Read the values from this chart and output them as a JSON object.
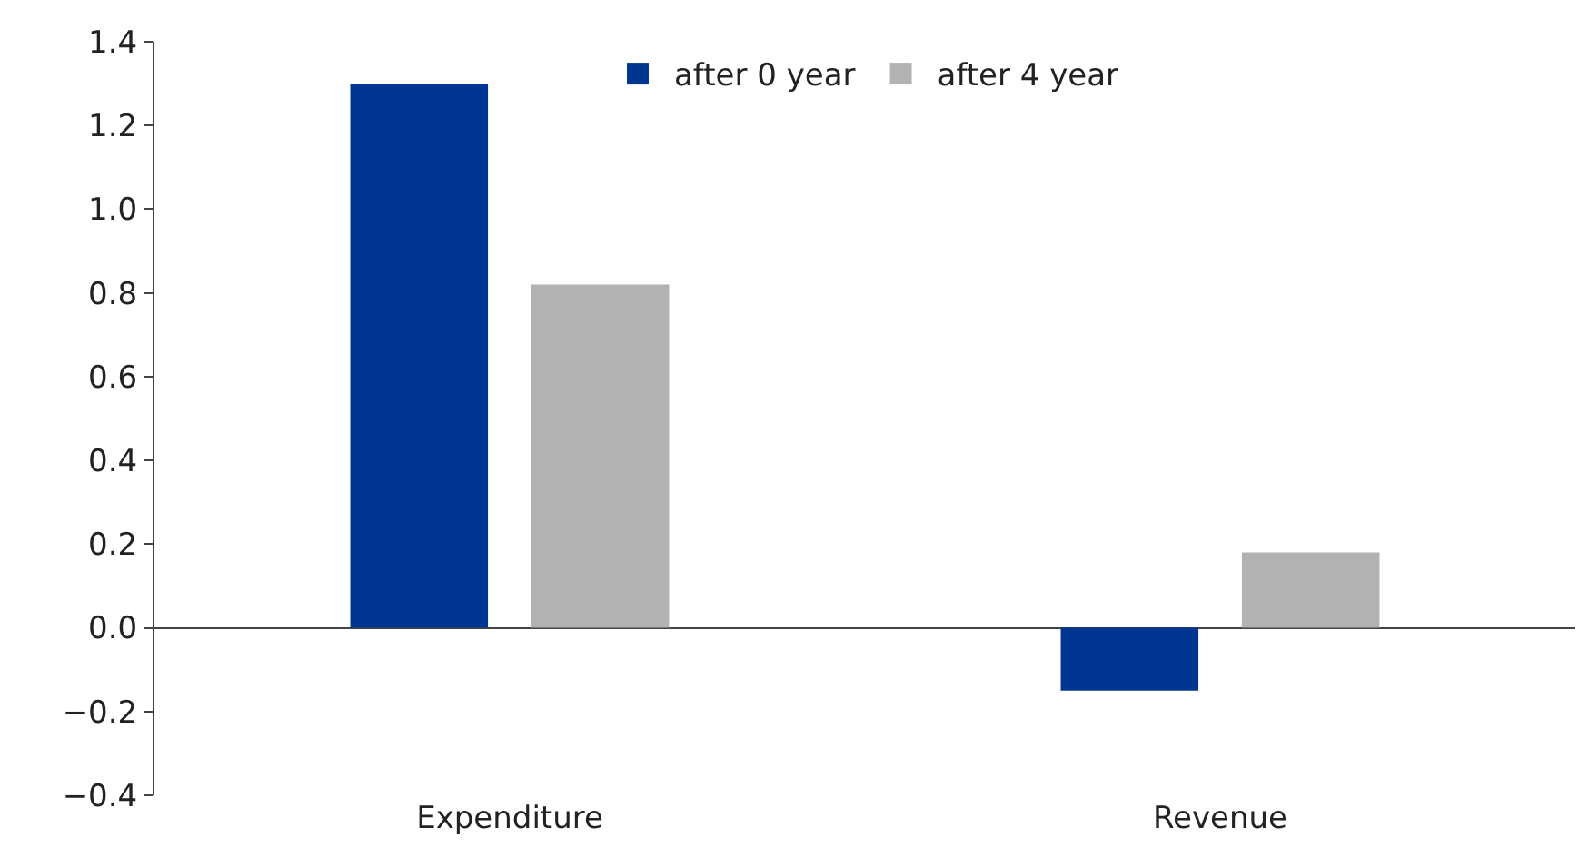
{
  "chart_data": {
    "type": "bar",
    "categories": [
      "Expenditure",
      "Revenue"
    ],
    "series": [
      {
        "name": "after 0 year",
        "color": "#003591",
        "values": [
          1.3,
          -0.15
        ]
      },
      {
        "name": "after 4 year",
        "color": "#b2b2b2",
        "values": [
          0.82,
          0.18
        ]
      }
    ],
    "ylim": [
      -0.4,
      1.4
    ],
    "yticks": [
      {
        "value": -0.4,
        "label": "−0.4"
      },
      {
        "value": -0.2,
        "label": "−0.2"
      },
      "0.0",
      0.2,
      0.4,
      0.6,
      0.8,
      "1.0",
      1.2,
      1.4
    ],
    "legend": "top"
  }
}
